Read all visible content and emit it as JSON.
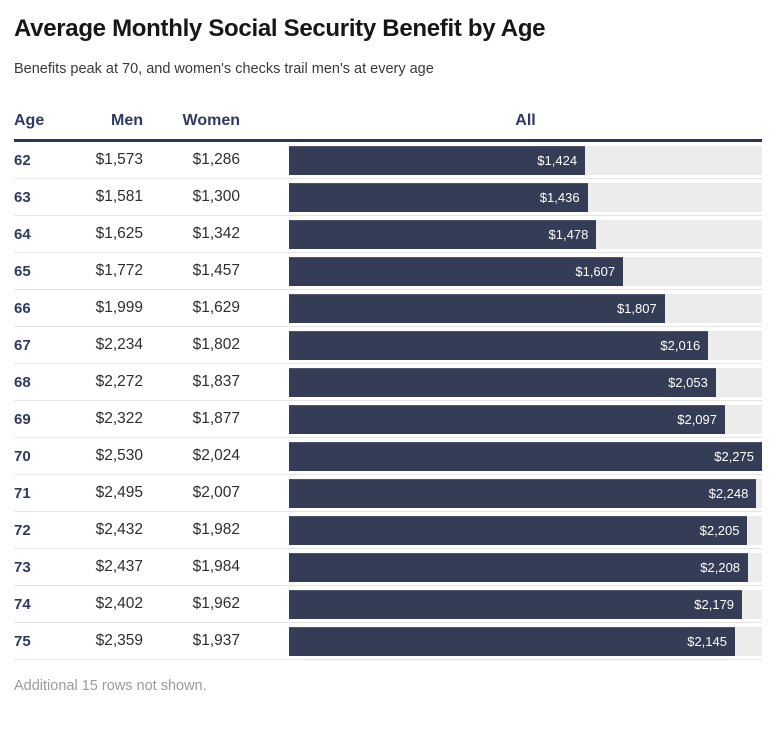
{
  "header": {
    "title": "Average Monthly Social Security Benefit by Age",
    "subtitle": "Benefits peak at 70, and women's checks trail men's at every age"
  },
  "chart_data": {
    "type": "table",
    "title": "Average Monthly Social Security Benefit by Age",
    "subtitle": "Benefits peak at 70, and women's checks trail men's at every age",
    "columns": [
      "Age",
      "Men",
      "Women",
      "All"
    ],
    "bar_column": "All",
    "bar_scale_max": 2275,
    "rows": [
      {
        "age": "62",
        "men": "$1,573",
        "women": "$1,286",
        "all_value": 1424,
        "all_label": "$1,424"
      },
      {
        "age": "63",
        "men": "$1,581",
        "women": "$1,300",
        "all_value": 1436,
        "all_label": "$1,436"
      },
      {
        "age": "64",
        "men": "$1,625",
        "women": "$1,342",
        "all_value": 1478,
        "all_label": "$1,478"
      },
      {
        "age": "65",
        "men": "$1,772",
        "women": "$1,457",
        "all_value": 1607,
        "all_label": "$1,607"
      },
      {
        "age": "66",
        "men": "$1,999",
        "women": "$1,629",
        "all_value": 1807,
        "all_label": "$1,807"
      },
      {
        "age": "67",
        "men": "$2,234",
        "women": "$1,802",
        "all_value": 2016,
        "all_label": "$2,016"
      },
      {
        "age": "68",
        "men": "$2,272",
        "women": "$1,837",
        "all_value": 2053,
        "all_label": "$2,053"
      },
      {
        "age": "69",
        "men": "$2,322",
        "women": "$1,877",
        "all_value": 2097,
        "all_label": "$2,097"
      },
      {
        "age": "70",
        "men": "$2,530",
        "women": "$2,024",
        "all_value": 2275,
        "all_label": "$2,275"
      },
      {
        "age": "71",
        "men": "$2,495",
        "women": "$2,007",
        "all_value": 2248,
        "all_label": "$2,248"
      },
      {
        "age": "72",
        "men": "$2,432",
        "women": "$1,982",
        "all_value": 2205,
        "all_label": "$2,205"
      },
      {
        "age": "73",
        "men": "$2,437",
        "women": "$1,984",
        "all_value": 2208,
        "all_label": "$2,208"
      },
      {
        "age": "74",
        "men": "$2,402",
        "women": "$1,962",
        "all_value": 2179,
        "all_label": "$2,179"
      },
      {
        "age": "75",
        "men": "$2,359",
        "women": "$1,937",
        "all_value": 2145,
        "all_label": "$2,145"
      }
    ],
    "footer": "Additional 15 rows not shown."
  },
  "footer": {
    "note": "Additional 15 rows not shown."
  },
  "colors": {
    "bar": "#343c56",
    "track": "#ececec",
    "navy": "#2e3a62",
    "rule": "#2c3657"
  }
}
